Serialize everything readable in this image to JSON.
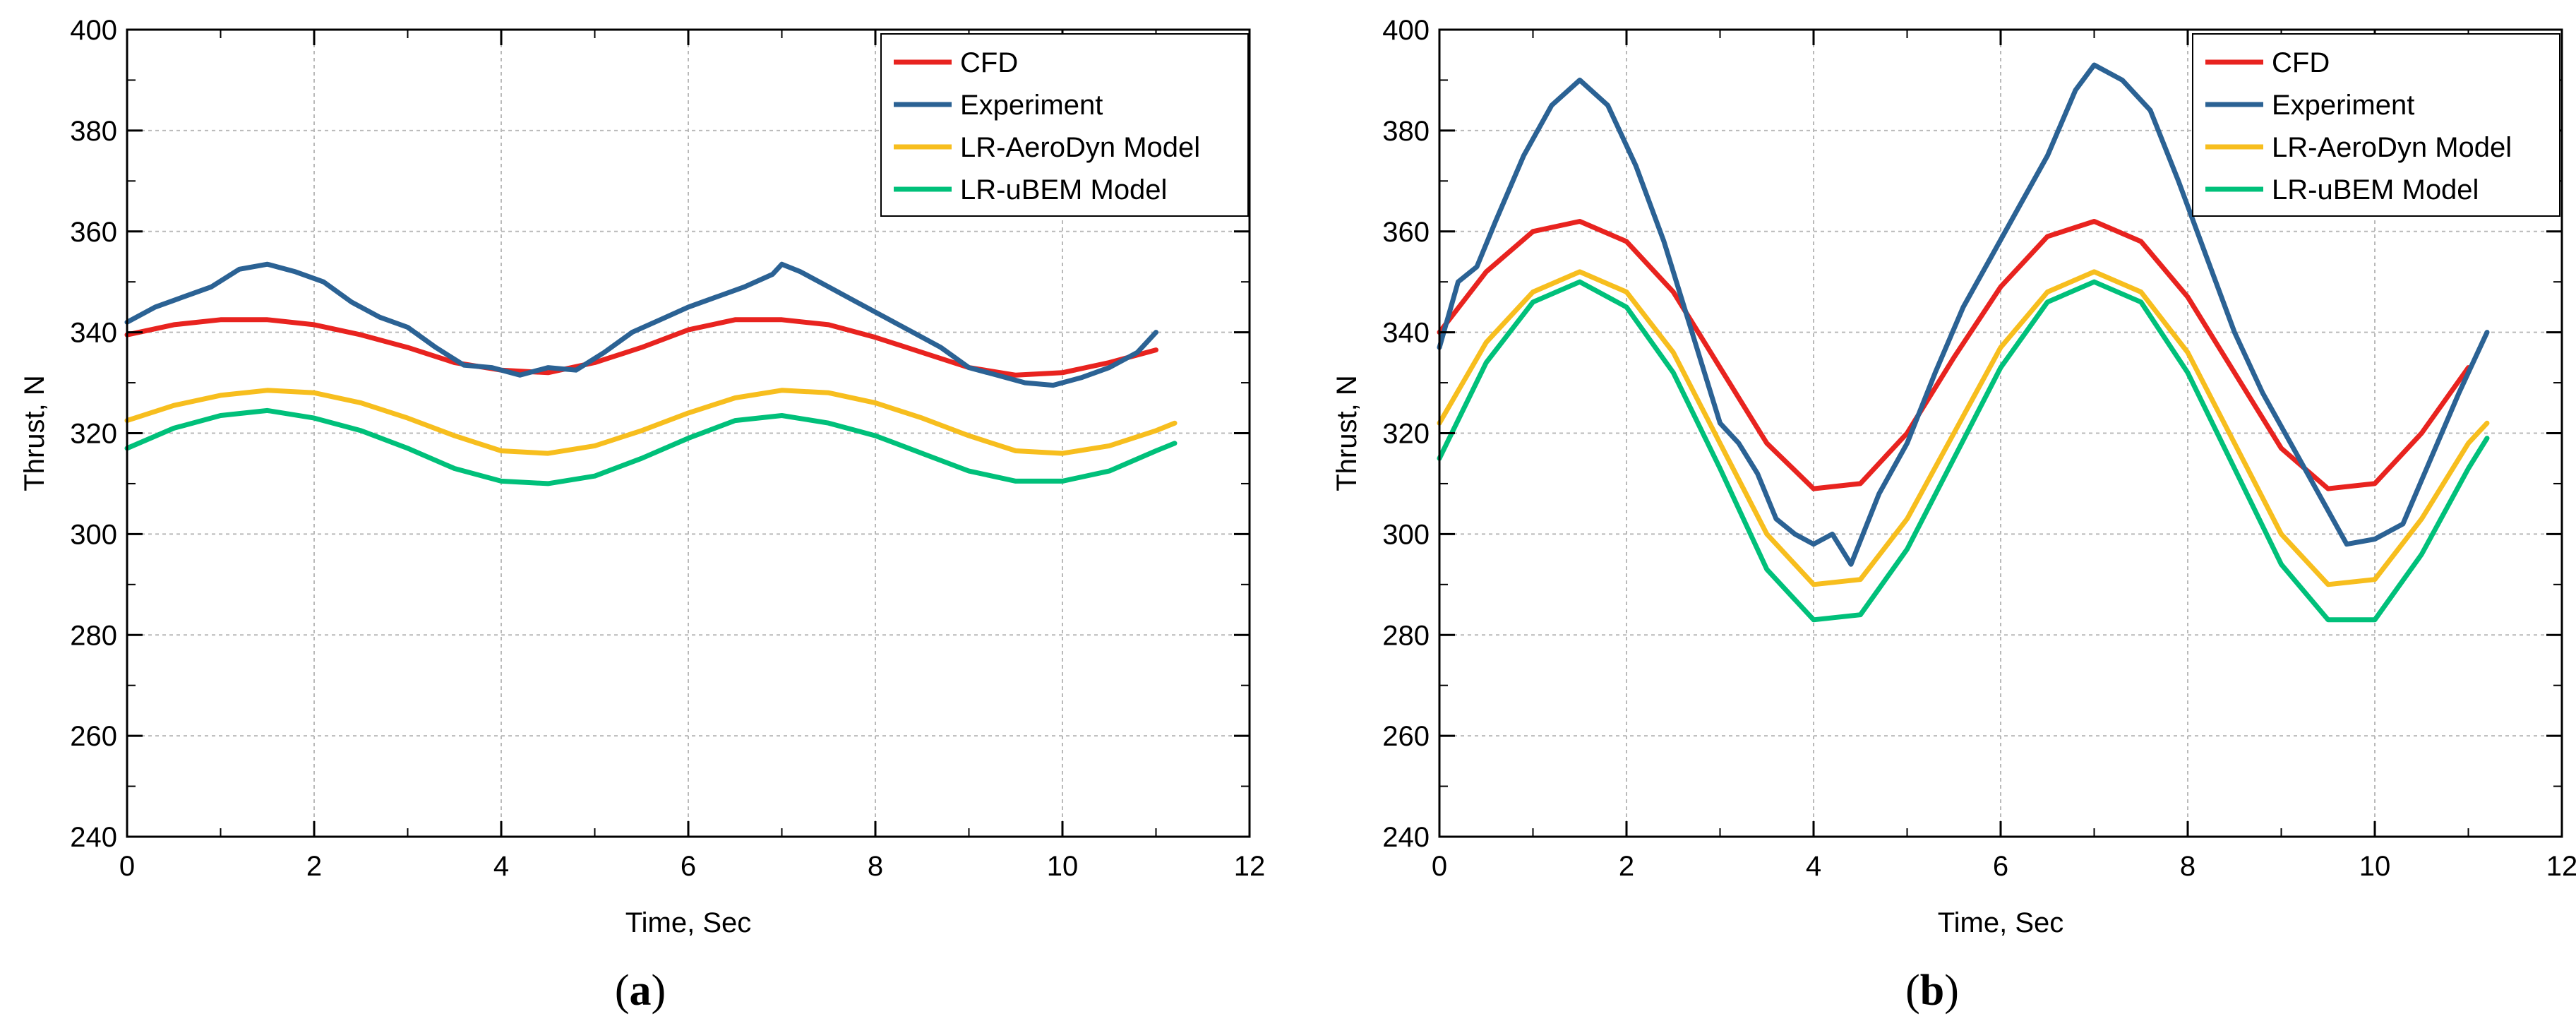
{
  "chart_data": [
    {
      "type": "line",
      "panel_label": "a",
      "title": "",
      "xlabel": "Time, Sec",
      "ylabel": "Thrust, N",
      "xlim": [
        0,
        12
      ],
      "ylim": [
        240,
        400
      ],
      "xticks": [
        0,
        2,
        4,
        6,
        8,
        10,
        12
      ],
      "yticks": [
        240,
        260,
        280,
        300,
        320,
        340,
        360,
        380,
        400
      ],
      "grid": true,
      "legend_position": "top-right",
      "series": [
        {
          "name": "CFD",
          "color": "#e8231f",
          "x": [
            0,
            0.5,
            1.0,
            1.5,
            2.0,
            2.5,
            3.0,
            3.5,
            4.0,
            4.5,
            5.0,
            5.5,
            6.0,
            6.5,
            7.0,
            7.5,
            8.0,
            8.5,
            9.0,
            9.5,
            10.0,
            10.5,
            11.0
          ],
          "y": [
            339.5,
            341.5,
            342.5,
            342.5,
            341.5,
            339.5,
            337,
            334,
            332.5,
            332,
            334,
            337,
            340.5,
            342.5,
            342.5,
            341.5,
            339,
            336,
            333,
            331.5,
            332,
            334,
            336.5
          ]
        },
        {
          "name": "Experiment",
          "color": "#2b6294",
          "x": [
            0,
            0.3,
            0.6,
            0.9,
            1.2,
            1.5,
            1.8,
            2.1,
            2.4,
            2.7,
            3.0,
            3.3,
            3.6,
            3.9,
            4.2,
            4.5,
            4.8,
            5.1,
            5.4,
            5.7,
            6.0,
            6.3,
            6.6,
            6.9,
            7.0,
            7.2,
            7.5,
            7.8,
            8.1,
            8.4,
            8.7,
            9.0,
            9.3,
            9.6,
            9.9,
            10.2,
            10.5,
            10.8,
            11.0
          ],
          "y": [
            342,
            345,
            347,
            349,
            352.5,
            353.5,
            352,
            350,
            346,
            343,
            341,
            337,
            333.5,
            333,
            331.5,
            333,
            332.5,
            336,
            340,
            342.5,
            345,
            347,
            349,
            351.5,
            353.5,
            352,
            349,
            346,
            343,
            340,
            337,
            333,
            331.5,
            330,
            329.5,
            331,
            333,
            336,
            340
          ]
        },
        {
          "name": "LR-AeroDyn Model",
          "color": "#f7be1e",
          "x": [
            0,
            0.5,
            1.0,
            1.5,
            2.0,
            2.5,
            3.0,
            3.5,
            4.0,
            4.5,
            5.0,
            5.5,
            6.0,
            6.5,
            7.0,
            7.5,
            8.0,
            8.5,
            9.0,
            9.5,
            10.0,
            10.5,
            11.0,
            11.2
          ],
          "y": [
            322.5,
            325.5,
            327.5,
            328.5,
            328,
            326,
            323,
            319.5,
            316.5,
            316,
            317.5,
            320.5,
            324,
            327,
            328.5,
            328,
            326,
            323,
            319.5,
            316.5,
            316,
            317.5,
            320.5,
            322
          ]
        },
        {
          "name": "LR-uBEM Model",
          "color": "#00c07a",
          "x": [
            0,
            0.5,
            1.0,
            1.5,
            2.0,
            2.5,
            3.0,
            3.5,
            4.0,
            4.5,
            5.0,
            5.5,
            6.0,
            6.5,
            7.0,
            7.5,
            8.0,
            8.5,
            9.0,
            9.5,
            10.0,
            10.5,
            11.0,
            11.2
          ],
          "y": [
            317,
            321,
            323.5,
            324.5,
            323,
            320.5,
            317,
            313,
            310.5,
            310,
            311.5,
            315,
            319,
            322.5,
            323.5,
            322,
            319.5,
            316,
            312.5,
            310.5,
            310.5,
            312.5,
            316.5,
            318
          ]
        }
      ]
    },
    {
      "type": "line",
      "panel_label": "b",
      "title": "",
      "xlabel": "Time, Sec",
      "ylabel": "Thrust, N",
      "xlim": [
        0,
        12
      ],
      "ylim": [
        240,
        400
      ],
      "xticks": [
        0,
        2,
        4,
        6,
        8,
        10,
        12
      ],
      "yticks": [
        240,
        260,
        280,
        300,
        320,
        340,
        360,
        380,
        400
      ],
      "grid": true,
      "legend_position": "top-right",
      "series": [
        {
          "name": "CFD",
          "color": "#e8231f",
          "x": [
            0,
            0.5,
            1.0,
            1.5,
            2.0,
            2.5,
            3.0,
            3.5,
            4.0,
            4.5,
            5.0,
            5.5,
            6.0,
            6.5,
            7.0,
            7.5,
            8.0,
            8.5,
            9.0,
            9.5,
            10.0,
            10.5,
            11.0
          ],
          "y": [
            340,
            352,
            360,
            362,
            358,
            348,
            333,
            318,
            309,
            310,
            320,
            335,
            349,
            359,
            362,
            358,
            347,
            332,
            317,
            309,
            310,
            320,
            333
          ]
        },
        {
          "name": "Experiment",
          "color": "#2b6294",
          "x": [
            0,
            0.2,
            0.4,
            0.6,
            0.9,
            1.2,
            1.5,
            1.8,
            2.1,
            2.4,
            2.7,
            3.0,
            3.2,
            3.4,
            3.6,
            3.8,
            4.0,
            4.2,
            4.4,
            4.7,
            5.0,
            5.3,
            5.6,
            5.9,
            6.2,
            6.5,
            6.8,
            7.0,
            7.3,
            7.6,
            7.9,
            8.2,
            8.5,
            8.8,
            9.1,
            9.4,
            9.7,
            10.0,
            10.3,
            10.6,
            10.9,
            11.2
          ],
          "y": [
            337,
            350,
            353,
            362,
            375,
            385,
            390,
            385,
            373,
            358,
            340,
            322,
            318,
            312,
            303,
            300,
            298,
            300,
            294,
            308,
            318,
            332,
            345,
            355,
            365,
            375,
            388,
            393,
            390,
            384,
            370,
            355,
            340,
            328,
            318,
            308,
            298,
            299,
            302,
            315,
            328,
            340
          ]
        },
        {
          "name": "LR-AeroDyn Model",
          "color": "#f7be1e",
          "x": [
            0,
            0.5,
            1.0,
            1.5,
            2.0,
            2.5,
            3.0,
            3.5,
            4.0,
            4.5,
            5.0,
            5.5,
            6.0,
            6.5,
            7.0,
            7.5,
            8.0,
            8.5,
            9.0,
            9.5,
            10.0,
            10.5,
            11.0,
            11.2
          ],
          "y": [
            322,
            338,
            348,
            352,
            348,
            336,
            318,
            300,
            290,
            291,
            303,
            320,
            337,
            348,
            352,
            348,
            336,
            318,
            300,
            290,
            291,
            303,
            318,
            322
          ]
        },
        {
          "name": "LR-uBEM Model",
          "color": "#00c07a",
          "x": [
            0,
            0.5,
            1.0,
            1.5,
            2.0,
            2.5,
            3.0,
            3.5,
            4.0,
            4.5,
            5.0,
            5.5,
            6.0,
            6.5,
            7.0,
            7.5,
            8.0,
            8.5,
            9.0,
            9.5,
            10.0,
            10.5,
            11.0,
            11.2
          ],
          "y": [
            315,
            334,
            346,
            350,
            345,
            332,
            313,
            293,
            283,
            284,
            297,
            315,
            333,
            346,
            350,
            346,
            332,
            313,
            294,
            283,
            283,
            296,
            313,
            319
          ]
        }
      ]
    }
  ],
  "captions": {
    "a": "a",
    "b": "b"
  }
}
